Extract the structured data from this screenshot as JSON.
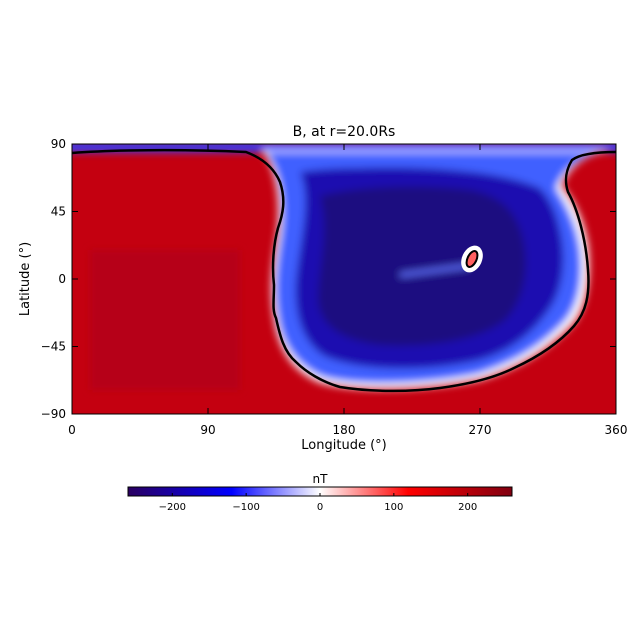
{
  "chart_data": {
    "type": "heatmap",
    "title": "B, at r=20.0Rs",
    "xlabel": "Longitude (°)",
    "ylabel": "Latitude (°)",
    "xlim": [
      0,
      360
    ],
    "ylim": [
      -90,
      90
    ],
    "xticks": [
      0,
      90,
      180,
      270,
      360
    ],
    "yticks": [
      90,
      45,
      0,
      -45,
      -90
    ],
    "zero_contour": true,
    "colorbar": {
      "label": "nT",
      "range": [
        -260,
        260
      ],
      "ticks": [
        -200,
        -100,
        0,
        100,
        200
      ],
      "tick_labels": [
        "−200",
        "−100",
        "0",
        "100",
        "200"
      ],
      "colors": [
        "#2a0060",
        "#0000ff",
        "#ffffff",
        "#ff0000",
        "#800010"
      ]
    },
    "field_summary": {
      "positive_region_max": 240,
      "negative_region_min": -230,
      "negative_region_longitude_range": [
        135,
        345
      ],
      "negative_region_latitude_range": [
        -77,
        88
      ],
      "small_positive_island": {
        "longitude": 265,
        "latitude": 14,
        "value": 150
      }
    }
  }
}
